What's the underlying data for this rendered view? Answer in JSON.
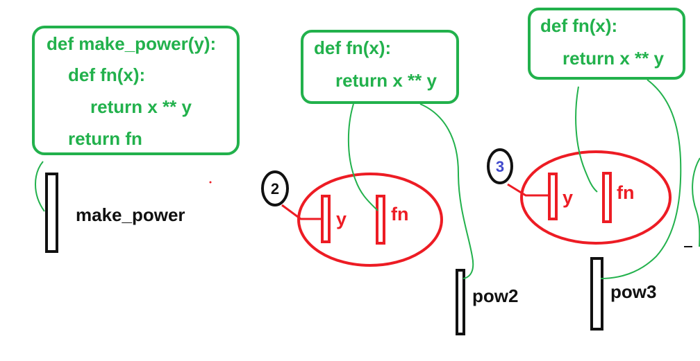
{
  "colors": {
    "code": "#22b14c",
    "frame": "#ed1c24",
    "label": "#111111",
    "num2": "#111111",
    "num3": "#3f48cc"
  },
  "code_boxes": [
    {
      "lines": [
        "def make_power(y):",
        "def fn(x):",
        "return x ** y",
        "return fn"
      ]
    },
    {
      "lines": [
        "def fn(x):",
        "return x ** y"
      ]
    },
    {
      "lines": [
        "def fn(x):",
        "return x ** y"
      ]
    }
  ],
  "names": {
    "make_power": "make_power",
    "pow2": "pow2",
    "pow3": "pow3"
  },
  "frames": [
    {
      "arg_value": "2",
      "var_y": "y",
      "var_fn": "fn"
    },
    {
      "arg_value": "3",
      "var_y": "y",
      "var_fn": "fn"
    }
  ]
}
